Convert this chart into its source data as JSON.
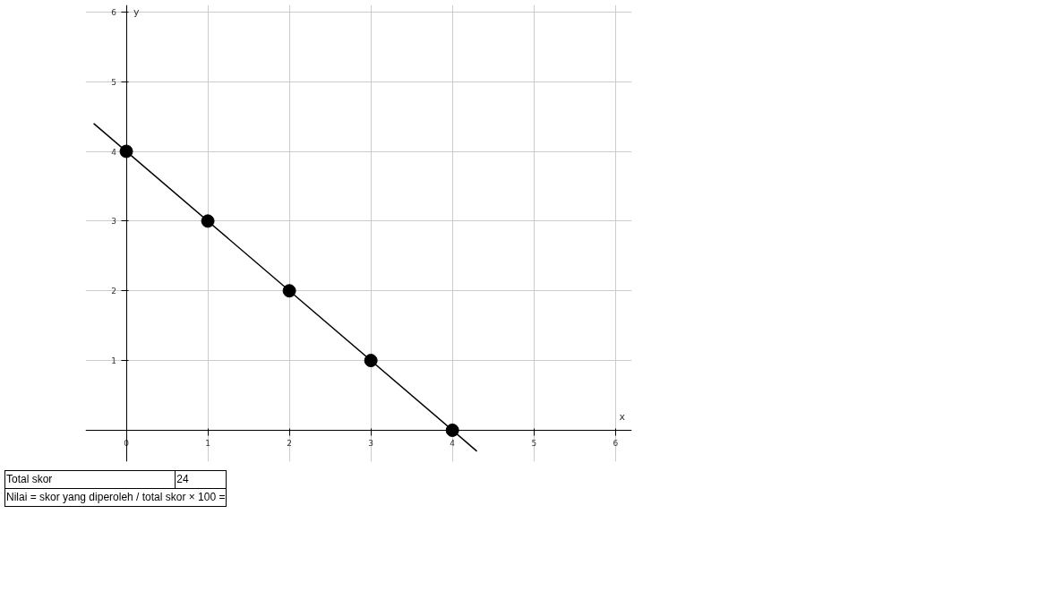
{
  "chart_data": {
    "type": "scatter",
    "xlabel": "x",
    "ylabel": "y",
    "xlim": [
      -0.5,
      6.2
    ],
    "ylim": [
      -0.45,
      6.1
    ],
    "xticks": [
      0,
      1,
      2,
      3,
      4,
      5,
      6
    ],
    "yticks": [
      1,
      2,
      3,
      4,
      5,
      6
    ],
    "grid": true,
    "series": [
      {
        "type": "line",
        "color": "#000000",
        "x": [
          -0.4,
          4.3
        ],
        "values": [
          4.4,
          -0.3
        ]
      },
      {
        "marker": "circle",
        "color": "#000000",
        "x": [
          0,
          1,
          2,
          3,
          4
        ],
        "values": [
          4,
          3,
          2,
          1,
          0
        ]
      }
    ],
    "annotations": [
      "Total skor",
      "24",
      "Nilai = skor yang diperoleh / total skor × 100 ="
    ]
  }
}
